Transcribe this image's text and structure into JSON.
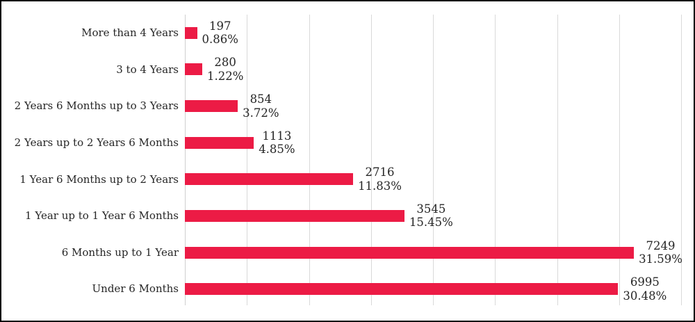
{
  "chart": {
    "title": "",
    "background_color": "#FFFFFF",
    "border_color": "#000000",
    "bar_color": "#EC1B45",
    "gridline_color": "#D9D9D9",
    "axis_line_color": "#CFCFCF",
    "text_color": "#262626"
  },
  "chart_data": {
    "type": "bar",
    "orientation": "horizontal",
    "title": "",
    "xlabel": "",
    "ylabel": "",
    "categories": [
      "More than 4 Years",
      "3 to 4 Years",
      "2 Years 6 Months up to 3 Years",
      "2 Years up to 2 Years 6 Months",
      "1 Year 6 Months up to 2 Years",
      "1 Year up to 1 Year 6 Months",
      "6 Months up to 1 Year",
      "Under 6 Months"
    ],
    "values": [
      197,
      280,
      854,
      1113,
      2716,
      3545,
      7249,
      6995
    ],
    "value_labels": [
      "197",
      "280",
      "854",
      "1113",
      "2716",
      "3545",
      "7249",
      "6995"
    ],
    "percent_labels": [
      "0.86%",
      "1.22%",
      "3.72%",
      "4.85%",
      "11.83%",
      "15.45%",
      "31.59%",
      "30.48%"
    ],
    "xlim": [
      0,
      8000
    ],
    "gridline_interval": 1000,
    "grid": "vertical",
    "legend_position": "none",
    "data_label_format": "value + percent, outside end"
  }
}
